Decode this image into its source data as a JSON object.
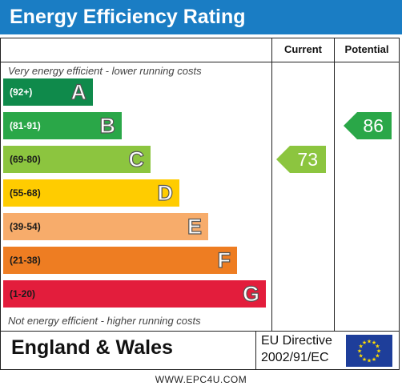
{
  "header": {
    "title": "Energy Efficiency Rating"
  },
  "columns": {
    "current": "Current",
    "potential": "Potential"
  },
  "captions": {
    "top": "Very energy efficient - lower running costs",
    "bottom": "Not energy efficient - higher running costs"
  },
  "chart_data": {
    "type": "bar",
    "title": "Energy Efficiency Rating",
    "categories": [
      "A",
      "B",
      "C",
      "D",
      "E",
      "F",
      "G"
    ],
    "bands": [
      {
        "letter": "A",
        "range": "(92+)",
        "color": "#0f8a4b",
        "text_color": "#ffffff"
      },
      {
        "letter": "B",
        "range": "(81-91)",
        "color": "#2aa748",
        "text_color": "#ffffff"
      },
      {
        "letter": "C",
        "range": "(69-80)",
        "color": "#8cc53f",
        "text_color": "#1a1a1a"
      },
      {
        "letter": "D",
        "range": "(55-68)",
        "color": "#ffcc00",
        "text_color": "#1a1a1a"
      },
      {
        "letter": "E",
        "range": "(39-54)",
        "color": "#f7ac6b",
        "text_color": "#1a1a1a"
      },
      {
        "letter": "F",
        "range": "(21-38)",
        "color": "#ee7d22",
        "text_color": "#1a1a1a"
      },
      {
        "letter": "G",
        "range": "(1-20)",
        "color": "#e31d3c",
        "text_color": "#1a1a1a"
      }
    ],
    "current": {
      "value": "73",
      "band": "C",
      "color": "#8cc53f"
    },
    "potential": {
      "value": "86",
      "band": "B",
      "color": "#2aa748"
    }
  },
  "footer_panel": {
    "region": "England & Wales",
    "directive_line1": "EU Directive",
    "directive_line2": "2002/91/EC",
    "flag_icon": "eu-flag-icon",
    "flag_color": "#1e3e9a",
    "star_color": "#ffdd00"
  },
  "footer": {
    "url": "WWW.EPC4U.COM"
  }
}
